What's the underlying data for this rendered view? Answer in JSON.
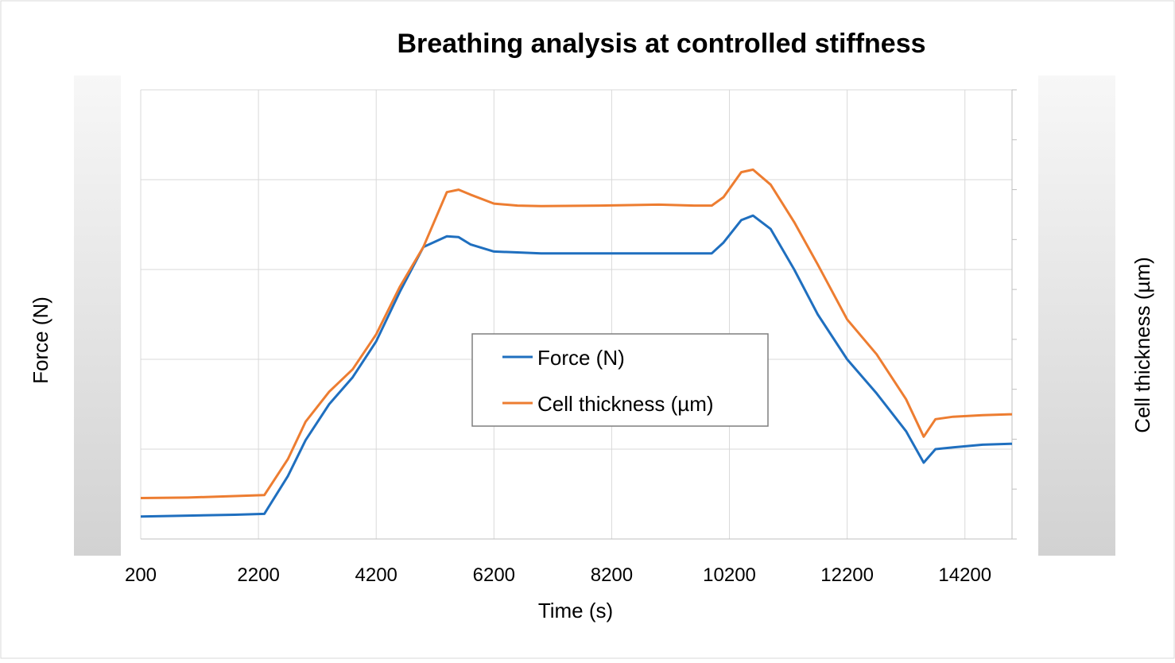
{
  "chart_data": {
    "type": "line",
    "title": "Breathing analysis at controlled stiffness",
    "xlabel": "Time (s)",
    "ylabel_left": "Force (N)",
    "ylabel_right": "Cell thickness (µm)",
    "x_ticks": [
      200,
      2200,
      4200,
      6200,
      8200,
      10200,
      12200,
      14200
    ],
    "xlim": [
      200,
      15000
    ],
    "ylim_left": [
      0,
      5
    ],
    "ylim_right": [
      0,
      9
    ],
    "grid": true,
    "legend_position": "center",
    "colors": {
      "force": "#1f6fbf",
      "thickness": "#ed7d31"
    },
    "series": [
      {
        "name": "Force (N)",
        "axis": "left",
        "color": "#1f6fbf",
        "x": [
          200,
          1000,
          1800,
          2300,
          2700,
          3000,
          3400,
          3800,
          4200,
          4600,
          5000,
          5400,
          5600,
          5800,
          6200,
          6600,
          7000,
          8000,
          9000,
          9600,
          9900,
          10100,
          10400,
          10600,
          10900,
          11300,
          11700,
          12200,
          12700,
          13200,
          13500,
          13700,
          14000,
          14500,
          15000
        ],
        "y": [
          0.25,
          0.26,
          0.27,
          0.28,
          0.7,
          1.1,
          1.5,
          1.8,
          2.2,
          2.75,
          3.25,
          3.37,
          3.36,
          3.28,
          3.2,
          3.19,
          3.18,
          3.18,
          3.18,
          3.18,
          3.18,
          3.3,
          3.55,
          3.6,
          3.45,
          3.0,
          2.5,
          2.0,
          1.62,
          1.2,
          0.85,
          1.0,
          1.02,
          1.05,
          1.06
        ]
      },
      {
        "name": "Cell thickness (µm)",
        "axis": "right",
        "color": "#ed7d31",
        "x": [
          200,
          1000,
          1800,
          2300,
          2700,
          3000,
          3400,
          3800,
          4200,
          4600,
          5000,
          5400,
          5600,
          5800,
          6200,
          6600,
          7000,
          8000,
          9000,
          9600,
          9900,
          10100,
          10400,
          10600,
          10900,
          11300,
          11700,
          12200,
          12700,
          13200,
          13500,
          13700,
          14000,
          14500,
          15000
        ],
        "y": [
          0.82,
          0.83,
          0.86,
          0.88,
          1.6,
          2.35,
          2.95,
          3.4,
          4.1,
          5.05,
          5.85,
          6.95,
          7.0,
          6.9,
          6.72,
          6.68,
          6.67,
          6.68,
          6.7,
          6.68,
          6.68,
          6.85,
          7.35,
          7.4,
          7.1,
          6.35,
          5.5,
          4.4,
          3.7,
          2.8,
          2.05,
          2.4,
          2.45,
          2.48,
          2.5
        ]
      }
    ]
  }
}
